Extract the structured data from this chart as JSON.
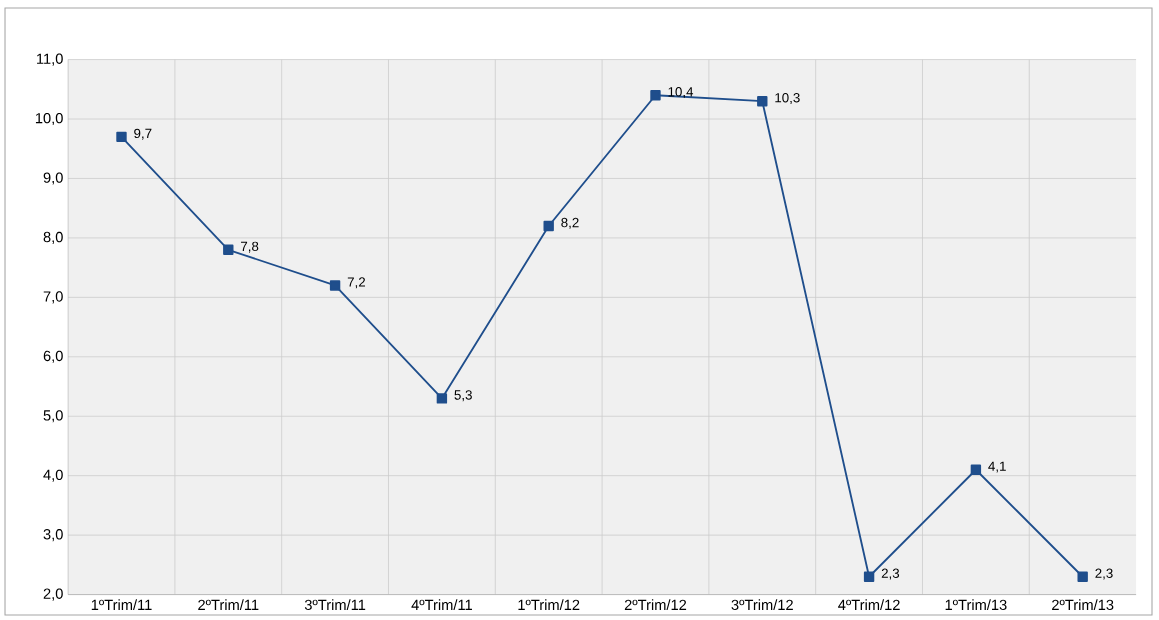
{
  "chart_data": {
    "type": "line",
    "categories": [
      "1ºTrim/11",
      "2ºTrim/11",
      "3ºTrim/11",
      "4ºTrim/11",
      "1ºTrim/12",
      "2ºTrim/12",
      "3ºTrim/12",
      "4ºTrim/12",
      "1ºTrim/13",
      "2ºTrim/13"
    ],
    "series": [
      {
        "color": "#1f4e8c",
        "values": [
          9.7,
          7.8,
          7.2,
          5.3,
          8.2,
          10.4,
          10.3,
          2.3,
          4.1,
          2.3
        ],
        "value_labels": [
          "9,7",
          "7,8",
          "7,2",
          "5,3",
          "8,2",
          "10,4",
          "10,3",
          "2,3",
          "4,1",
          "2,3"
        ]
      }
    ],
    "ylim": [
      2,
      11
    ],
    "yticks": [
      {
        "value": 2,
        "label": "2,0"
      },
      {
        "value": 3,
        "label": "3,0"
      },
      {
        "value": 4,
        "label": "4,0"
      },
      {
        "value": 5,
        "label": "5,0"
      },
      {
        "value": 6,
        "label": "6,0"
      },
      {
        "value": 7,
        "label": "7,0"
      },
      {
        "value": 8,
        "label": "8,0"
      },
      {
        "value": 9,
        "label": "9,0"
      },
      {
        "value": 10,
        "label": "10,0"
      },
      {
        "value": 11,
        "label": "11,0"
      }
    ],
    "grid": true,
    "marker": "square",
    "line_style": "solid"
  }
}
